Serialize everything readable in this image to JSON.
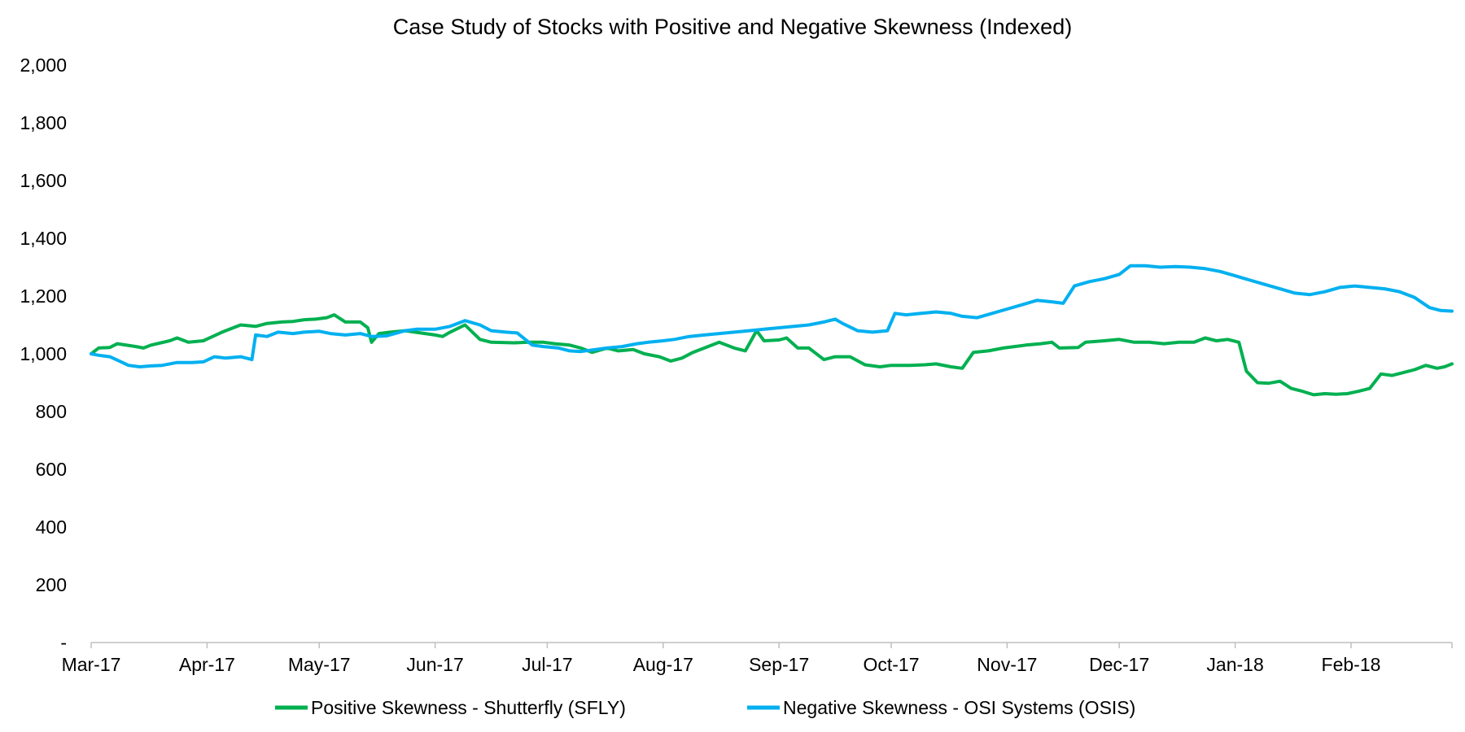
{
  "chart_data": {
    "type": "line",
    "title": "Case Study of Stocks with Positive and Negative Skewness (Indexed)",
    "xlabel": "",
    "ylabel": "",
    "x_tick_labels": [
      "Mar-17",
      "Apr-17",
      "May-17",
      "Jun-17",
      "Jul-17",
      "Aug-17",
      "Sep-17",
      "Oct-17",
      "Nov-17",
      "Dec-17",
      "Jan-18",
      "Feb-18"
    ],
    "y_tick_labels": [
      "-",
      "200",
      "400",
      "600",
      "800",
      "1,000",
      "1,200",
      "1,400",
      "1,600",
      "1,800",
      "2,000"
    ],
    "y_tick_values": [
      0,
      200,
      400,
      600,
      800,
      1000,
      1200,
      1400,
      1600,
      1800,
      2000
    ],
    "ylim": [
      0,
      2000
    ],
    "xlim": [
      "2017-03-01",
      "2018-02-28"
    ],
    "grid": false,
    "legend_position": "bottom",
    "series": [
      {
        "name": "Positive Skewness - Shutterfly (SFLY)",
        "color": "#00B050",
        "points": [
          [
            "2017-03-01",
            1000
          ],
          [
            "2017-03-03",
            1020
          ],
          [
            "2017-03-06",
            1022
          ],
          [
            "2017-03-08",
            1035
          ],
          [
            "2017-03-13",
            1025
          ],
          [
            "2017-03-15",
            1020
          ],
          [
            "2017-03-17",
            1030
          ],
          [
            "2017-03-22",
            1045
          ],
          [
            "2017-03-24",
            1055
          ],
          [
            "2017-03-27",
            1040
          ],
          [
            "2017-03-31",
            1045
          ],
          [
            "2017-04-05",
            1075
          ],
          [
            "2017-04-10",
            1100
          ],
          [
            "2017-04-14",
            1095
          ],
          [
            "2017-04-17",
            1105
          ],
          [
            "2017-04-21",
            1110
          ],
          [
            "2017-04-24",
            1112
          ],
          [
            "2017-04-27",
            1118
          ],
          [
            "2017-04-30",
            1120
          ],
          [
            "2017-05-03",
            1125
          ],
          [
            "2017-05-05",
            1135
          ],
          [
            "2017-05-08",
            1110
          ],
          [
            "2017-05-12",
            1110
          ],
          [
            "2017-05-14",
            1090
          ],
          [
            "2017-05-15",
            1040
          ],
          [
            "2017-05-17",
            1070
          ],
          [
            "2017-05-20",
            1075
          ],
          [
            "2017-05-24",
            1080
          ],
          [
            "2017-06-01",
            1065
          ],
          [
            "2017-06-03",
            1060
          ],
          [
            "2017-06-05",
            1075
          ],
          [
            "2017-06-09",
            1100
          ],
          [
            "2017-06-13",
            1050
          ],
          [
            "2017-06-16",
            1040
          ],
          [
            "2017-06-22",
            1038
          ],
          [
            "2017-06-26",
            1040
          ],
          [
            "2017-06-30",
            1040
          ],
          [
            "2017-07-03",
            1035
          ],
          [
            "2017-07-07",
            1030
          ],
          [
            "2017-07-10",
            1020
          ],
          [
            "2017-07-13",
            1005
          ],
          [
            "2017-07-17",
            1020
          ],
          [
            "2017-07-20",
            1010
          ],
          [
            "2017-07-24",
            1015
          ],
          [
            "2017-07-27",
            1000
          ],
          [
            "2017-07-31",
            990
          ],
          [
            "2017-08-03",
            975
          ],
          [
            "2017-08-06",
            985
          ],
          [
            "2017-08-09",
            1005
          ],
          [
            "2017-08-13",
            1025
          ],
          [
            "2017-08-16",
            1040
          ],
          [
            "2017-08-20",
            1020
          ],
          [
            "2017-08-23",
            1010
          ],
          [
            "2017-08-26",
            1080
          ],
          [
            "2017-08-28",
            1045
          ],
          [
            "2017-09-01",
            1048
          ],
          [
            "2017-09-03",
            1055
          ],
          [
            "2017-09-06",
            1020
          ],
          [
            "2017-09-09",
            1020
          ],
          [
            "2017-09-13",
            980
          ],
          [
            "2017-09-16",
            990
          ],
          [
            "2017-09-20",
            990
          ],
          [
            "2017-09-24",
            962
          ],
          [
            "2017-09-28",
            955
          ],
          [
            "2017-10-01",
            960
          ],
          [
            "2017-10-06",
            960
          ],
          [
            "2017-10-10",
            962
          ],
          [
            "2017-10-13",
            965
          ],
          [
            "2017-10-17",
            955
          ],
          [
            "2017-10-20",
            950
          ],
          [
            "2017-10-23",
            1005
          ],
          [
            "2017-10-27",
            1010
          ],
          [
            "2017-10-31",
            1020
          ],
          [
            "2017-11-03",
            1025
          ],
          [
            "2017-11-06",
            1030
          ],
          [
            "2017-11-10",
            1035
          ],
          [
            "2017-11-13",
            1040
          ],
          [
            "2017-11-15",
            1020
          ],
          [
            "2017-11-20",
            1022
          ],
          [
            "2017-11-22",
            1040
          ],
          [
            "2017-11-27",
            1045
          ],
          [
            "2017-12-01",
            1050
          ],
          [
            "2017-12-05",
            1040
          ],
          [
            "2017-12-09",
            1040
          ],
          [
            "2017-12-13",
            1035
          ],
          [
            "2017-12-17",
            1040
          ],
          [
            "2017-12-21",
            1040
          ],
          [
            "2017-12-24",
            1055
          ],
          [
            "2017-12-27",
            1045
          ],
          [
            "2017-12-30",
            1050
          ],
          [
            "2018-01-02",
            1040
          ],
          [
            "2018-01-04",
            940
          ],
          [
            "2018-01-07",
            900
          ],
          [
            "2018-01-10",
            898
          ],
          [
            "2018-01-13",
            905
          ],
          [
            "2018-01-16",
            880
          ],
          [
            "2018-01-19",
            870
          ],
          [
            "2018-01-22",
            858
          ],
          [
            "2018-01-25",
            862
          ],
          [
            "2018-01-28",
            860
          ],
          [
            "2018-01-31",
            862
          ],
          [
            "2018-02-03",
            870
          ],
          [
            "2018-02-06",
            880
          ],
          [
            "2018-02-09",
            930
          ],
          [
            "2018-02-12",
            925
          ],
          [
            "2018-02-15",
            935
          ],
          [
            "2018-02-18",
            945
          ],
          [
            "2018-02-21",
            960
          ],
          [
            "2018-02-24",
            950
          ],
          [
            "2018-02-26",
            955
          ],
          [
            "2018-02-28",
            965
          ]
        ]
      },
      {
        "name": "Negative Skewness - OSI Systems (OSIS)",
        "color": "#00B0F0",
        "points": [
          [
            "2017-03-01",
            1000
          ],
          [
            "2017-03-03",
            995
          ],
          [
            "2017-03-06",
            990
          ],
          [
            "2017-03-08",
            978
          ],
          [
            "2017-03-11",
            960
          ],
          [
            "2017-03-14",
            955
          ],
          [
            "2017-03-17",
            958
          ],
          [
            "2017-03-20",
            960
          ],
          [
            "2017-03-24",
            970
          ],
          [
            "2017-03-28",
            970
          ],
          [
            "2017-03-31",
            972
          ],
          [
            "2017-04-03",
            990
          ],
          [
            "2017-04-06",
            985
          ],
          [
            "2017-04-10",
            990
          ],
          [
            "2017-04-13",
            980
          ],
          [
            "2017-04-14",
            1065
          ],
          [
            "2017-04-17",
            1060
          ],
          [
            "2017-04-20",
            1075
          ],
          [
            "2017-04-24",
            1070
          ],
          [
            "2017-04-27",
            1075
          ],
          [
            "2017-05-01",
            1078
          ],
          [
            "2017-05-04",
            1070
          ],
          [
            "2017-05-08",
            1065
          ],
          [
            "2017-05-12",
            1070
          ],
          [
            "2017-05-15",
            1060
          ],
          [
            "2017-05-19",
            1062
          ],
          [
            "2017-05-24",
            1080
          ],
          [
            "2017-05-27",
            1085
          ],
          [
            "2017-06-01",
            1085
          ],
          [
            "2017-06-05",
            1095
          ],
          [
            "2017-06-09",
            1115
          ],
          [
            "2017-06-13",
            1100
          ],
          [
            "2017-06-16",
            1080
          ],
          [
            "2017-06-20",
            1075
          ],
          [
            "2017-06-23",
            1072
          ],
          [
            "2017-06-27",
            1030
          ],
          [
            "2017-06-30",
            1025
          ],
          [
            "2017-07-04",
            1020
          ],
          [
            "2017-07-07",
            1010
          ],
          [
            "2017-07-10",
            1008
          ],
          [
            "2017-07-14",
            1015
          ],
          [
            "2017-07-17",
            1020
          ],
          [
            "2017-07-21",
            1025
          ],
          [
            "2017-07-25",
            1035
          ],
          [
            "2017-07-28",
            1040
          ],
          [
            "2017-08-01",
            1045
          ],
          [
            "2017-08-04",
            1050
          ],
          [
            "2017-08-08",
            1060
          ],
          [
            "2017-08-12",
            1065
          ],
          [
            "2017-08-16",
            1070
          ],
          [
            "2017-08-20",
            1075
          ],
          [
            "2017-08-24",
            1080
          ],
          [
            "2017-08-28",
            1085
          ],
          [
            "2017-09-01",
            1090
          ],
          [
            "2017-09-05",
            1095
          ],
          [
            "2017-09-09",
            1100
          ],
          [
            "2017-09-13",
            1110
          ],
          [
            "2017-09-16",
            1120
          ],
          [
            "2017-09-18",
            1105
          ],
          [
            "2017-09-22",
            1080
          ],
          [
            "2017-09-26",
            1075
          ],
          [
            "2017-09-30",
            1080
          ],
          [
            "2017-10-02",
            1140
          ],
          [
            "2017-10-05",
            1135
          ],
          [
            "2017-10-09",
            1140
          ],
          [
            "2017-10-13",
            1145
          ],
          [
            "2017-10-17",
            1140
          ],
          [
            "2017-10-20",
            1130
          ],
          [
            "2017-10-24",
            1125
          ],
          [
            "2017-10-28",
            1140
          ],
          [
            "2017-11-01",
            1155
          ],
          [
            "2017-11-05",
            1170
          ],
          [
            "2017-11-09",
            1185
          ],
          [
            "2017-11-13",
            1180
          ],
          [
            "2017-11-16",
            1175
          ],
          [
            "2017-11-19",
            1235
          ],
          [
            "2017-11-23",
            1250
          ],
          [
            "2017-11-27",
            1260
          ],
          [
            "2017-12-01",
            1275
          ],
          [
            "2017-12-04",
            1305
          ],
          [
            "2017-12-08",
            1305
          ],
          [
            "2017-12-12",
            1300
          ],
          [
            "2017-12-16",
            1302
          ],
          [
            "2017-12-20",
            1300
          ],
          [
            "2017-12-24",
            1295
          ],
          [
            "2017-12-28",
            1285
          ],
          [
            "2018-01-01",
            1270
          ],
          [
            "2018-01-05",
            1255
          ],
          [
            "2018-01-09",
            1240
          ],
          [
            "2018-01-13",
            1225
          ],
          [
            "2018-01-17",
            1210
          ],
          [
            "2018-01-21",
            1205
          ],
          [
            "2018-01-25",
            1215
          ],
          [
            "2018-01-29",
            1230
          ],
          [
            "2018-02-02",
            1235
          ],
          [
            "2018-02-06",
            1230
          ],
          [
            "2018-02-10",
            1225
          ],
          [
            "2018-02-14",
            1215
          ],
          [
            "2018-02-18",
            1195
          ],
          [
            "2018-02-22",
            1160
          ],
          [
            "2018-02-25",
            1150
          ],
          [
            "2018-02-28",
            1148
          ]
        ]
      }
    ]
  }
}
